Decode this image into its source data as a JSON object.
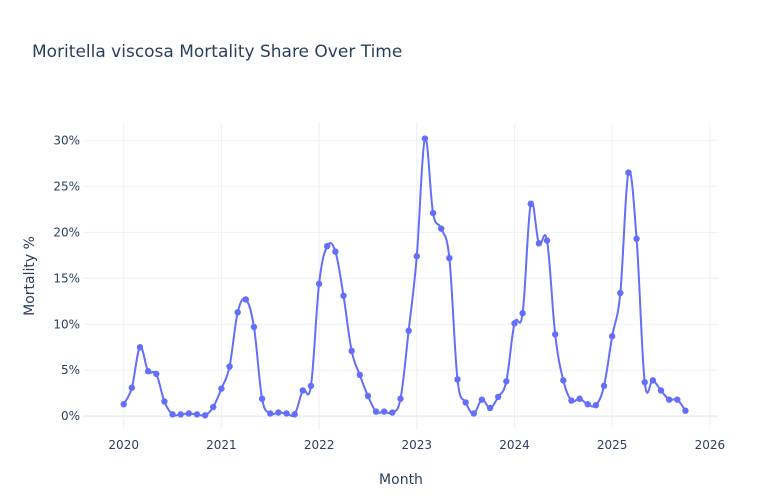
{
  "chart_data": {
    "type": "line",
    "title": "Moritella viscosa Mortality Share Over Time",
    "xlabel": "Month",
    "ylabel": "Mortality %",
    "x_ticks": [
      "2020",
      "2021",
      "2022",
      "2023",
      "2024",
      "2025",
      "2026"
    ],
    "y_ticks": [
      "0%",
      "5%",
      "10%",
      "15%",
      "20%",
      "25%",
      "30%"
    ],
    "xlim": [
      "2019-08",
      "2026-02"
    ],
    "ylim": [
      -1.5,
      32
    ],
    "grid": true,
    "legend": "none",
    "line_color": "#636efa",
    "series": [
      {
        "x": [
          "2020-01",
          "2020-02",
          "2020-03",
          "2020-04",
          "2020-05",
          "2020-06",
          "2020-07",
          "2020-08",
          "2020-09",
          "2020-10",
          "2020-11",
          "2020-12",
          "2021-01",
          "2021-02",
          "2021-03",
          "2021-04",
          "2021-05",
          "2021-06",
          "2021-07",
          "2021-08",
          "2021-09",
          "2021-10",
          "2021-11",
          "2021-12",
          "2022-01",
          "2022-02",
          "2022-03",
          "2022-04",
          "2022-05",
          "2022-06",
          "2022-07",
          "2022-08",
          "2022-09",
          "2022-10",
          "2022-11",
          "2022-12",
          "2023-01",
          "2023-02",
          "2023-03",
          "2023-04",
          "2023-05",
          "2023-06",
          "2023-07",
          "2023-08",
          "2023-09",
          "2023-10",
          "2023-11",
          "2023-12",
          "2024-01",
          "2024-02",
          "2024-03",
          "2024-04",
          "2024-05",
          "2024-06",
          "2024-07",
          "2024-08",
          "2024-09",
          "2024-10",
          "2024-11",
          "2024-12",
          "2025-01",
          "2025-02",
          "2025-03",
          "2025-04",
          "2025-05",
          "2025-06",
          "2025-07",
          "2025-08",
          "2025-09",
          "2025-10"
        ],
        "values": [
          1.3,
          3.1,
          7.5,
          4.9,
          4.6,
          1.6,
          0.2,
          0.2,
          0.3,
          0.2,
          0.1,
          1.0,
          3.0,
          5.4,
          11.3,
          12.7,
          9.7,
          1.9,
          0.3,
          0.4,
          0.3,
          0.2,
          2.8,
          3.3,
          14.4,
          18.5,
          17.9,
          13.1,
          7.1,
          4.5,
          2.2,
          0.5,
          0.5,
          0.4,
          1.9,
          9.3,
          17.4,
          30.2,
          22.1,
          20.4,
          17.2,
          4.0,
          1.5,
          0.3,
          1.8,
          0.9,
          2.1,
          3.8,
          10.1,
          11.2,
          23.1,
          18.8,
          19.1,
          8.9,
          3.9,
          1.7,
          1.9,
          1.3,
          1.2,
          3.3,
          8.7,
          13.4,
          26.5,
          19.3,
          3.7,
          3.9,
          2.8,
          1.8,
          1.8,
          0.6
        ]
      }
    ]
  }
}
